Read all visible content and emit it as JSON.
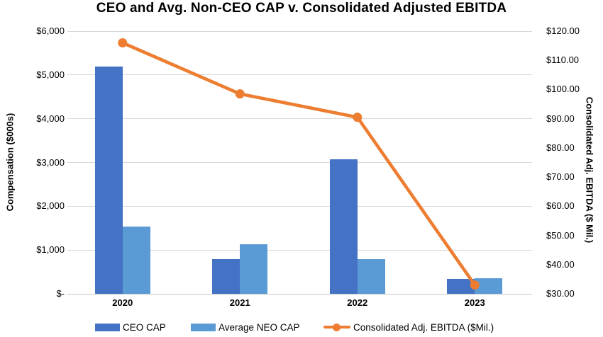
{
  "title": "CEO and Avg. Non-CEO CAP v. Consolidated Adjusted EBITDA",
  "chart_data": {
    "type": "combo",
    "categories": [
      "2020",
      "2021",
      "2022",
      "2023"
    ],
    "series": [
      {
        "name": "CEO CAP",
        "type": "bar",
        "axis": "left",
        "color": "#4472C4",
        "values": [
          5190,
          800,
          3070,
          340
        ]
      },
      {
        "name": "Average NEO CAP",
        "type": "bar",
        "axis": "left",
        "color": "#5B9BD5",
        "values": [
          1530,
          1140,
          800,
          350
        ]
      },
      {
        "name": "Consolidated Adj. EBITDA ($Mil.)",
        "type": "line",
        "axis": "right",
        "color": "#ED7D31",
        "values": [
          116,
          98.5,
          90.5,
          33
        ]
      }
    ],
    "left_axis": {
      "label": "Compensation ($000s)",
      "min": 0,
      "max": 6000,
      "step": 1000,
      "tick_labels": [
        "$6,000",
        "$5,000",
        "$4,000",
        "$3,000",
        "$2,000",
        "$1,000",
        "$-"
      ]
    },
    "right_axis": {
      "label": "Consolidated Adj. EBITDA ($ Mil.)",
      "min": 30,
      "max": 120,
      "step": 10,
      "tick_labels": [
        "$120.00",
        "$110.00",
        "$100.00",
        "$90.00",
        "$80.00",
        "$70.00",
        "$60.00",
        "$50.00",
        "$40.00",
        "$30.00"
      ]
    },
    "legend": {
      "position": "bottom"
    },
    "grid": "horizontal-only",
    "colors": {
      "gridline": "#D9D9D9",
      "text": "#000000",
      "background": "#FFFFFF"
    }
  }
}
